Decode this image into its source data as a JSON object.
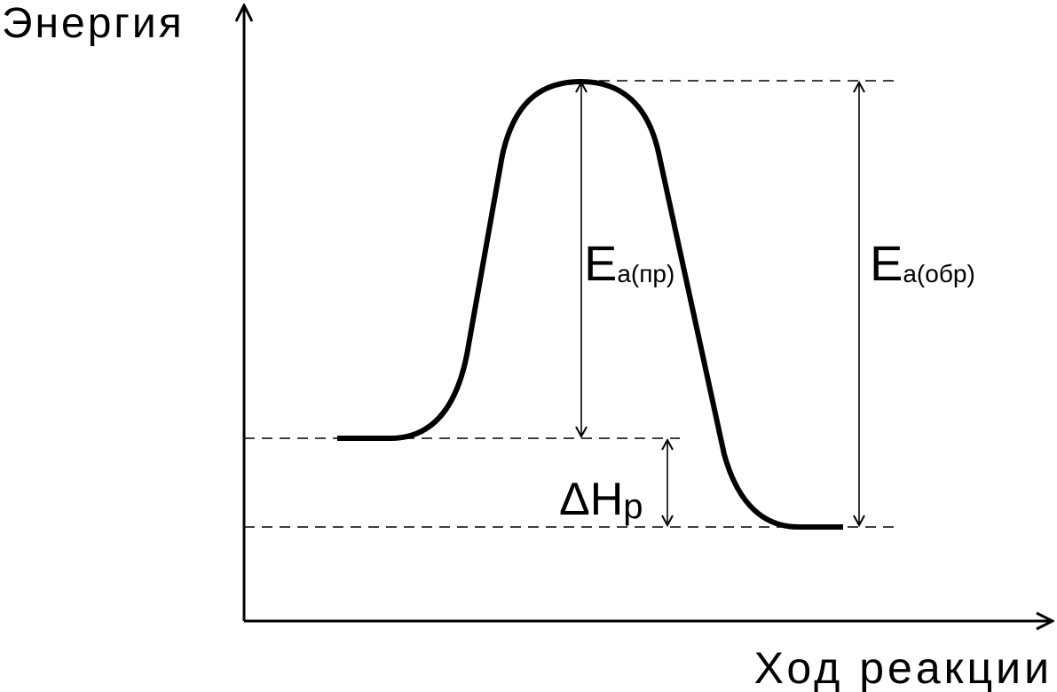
{
  "axes": {
    "y_label": "Энергия",
    "x_label": "Ход реакции"
  },
  "labels": [
    {
      "main": "E",
      "sub": "а(пр)"
    },
    {
      "main": "E",
      "sub": "а(обр)"
    },
    {
      "main": "ΔH",
      "sub": "р"
    }
  ]
}
